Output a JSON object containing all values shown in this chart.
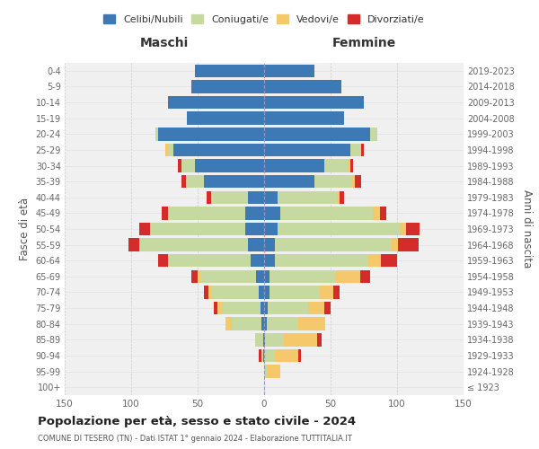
{
  "age_groups": [
    "100+",
    "95-99",
    "90-94",
    "85-89",
    "80-84",
    "75-79",
    "70-74",
    "65-69",
    "60-64",
    "55-59",
    "50-54",
    "45-49",
    "40-44",
    "35-39",
    "30-34",
    "25-29",
    "20-24",
    "15-19",
    "10-14",
    "5-9",
    "0-4"
  ],
  "birth_years": [
    "≤ 1923",
    "1924-1928",
    "1929-1933",
    "1934-1938",
    "1939-1943",
    "1944-1948",
    "1949-1953",
    "1954-1958",
    "1959-1963",
    "1964-1968",
    "1969-1973",
    "1974-1978",
    "1979-1983",
    "1984-1988",
    "1989-1993",
    "1994-1998",
    "1999-2003",
    "2004-2008",
    "2009-2013",
    "2014-2018",
    "2019-2023"
  ],
  "colors": {
    "celibi": "#3d7ab5",
    "coniugati": "#c5d9a0",
    "vedovi": "#f5c96b",
    "divorziati": "#d42b2b"
  },
  "maschi": {
    "celibi": [
      0,
      0,
      1,
      1,
      2,
      3,
      4,
      6,
      10,
      12,
      14,
      14,
      12,
      45,
      52,
      68,
      80,
      58,
      72,
      55,
      52
    ],
    "coniugati": [
      0,
      0,
      1,
      6,
      22,
      28,
      35,
      42,
      62,
      82,
      72,
      58,
      28,
      14,
      10,
      4,
      2,
      0,
      0,
      0,
      0
    ],
    "vedovi": [
      0,
      0,
      0,
      0,
      5,
      4,
      3,
      2,
      0,
      0,
      0,
      0,
      0,
      0,
      0,
      2,
      0,
      0,
      0,
      0,
      0
    ],
    "divorziati": [
      0,
      0,
      2,
      0,
      0,
      3,
      3,
      5,
      8,
      8,
      8,
      5,
      3,
      3,
      3,
      0,
      0,
      0,
      0,
      0,
      0
    ]
  },
  "femmine": {
    "nubili": [
      0,
      0,
      0,
      1,
      2,
      3,
      4,
      4,
      8,
      8,
      10,
      12,
      10,
      38,
      45,
      65,
      80,
      60,
      75,
      58,
      38
    ],
    "coniugate": [
      0,
      2,
      8,
      14,
      24,
      30,
      38,
      50,
      70,
      88,
      92,
      70,
      45,
      28,
      18,
      8,
      5,
      0,
      0,
      0,
      0
    ],
    "vedove": [
      0,
      10,
      18,
      25,
      20,
      12,
      10,
      18,
      10,
      5,
      5,
      5,
      2,
      2,
      2,
      0,
      0,
      0,
      0,
      0,
      0
    ],
    "divorziate": [
      0,
      0,
      2,
      3,
      0,
      5,
      5,
      8,
      12,
      15,
      10,
      5,
      3,
      5,
      2,
      2,
      0,
      0,
      0,
      0,
      0
    ]
  },
  "xlim": 150,
  "title_main": "Popolazione per età, sesso e stato civile - 2024",
  "title_sub": "COMUNE DI TESERO (TN) - Dati ISTAT 1° gennaio 2024 - Elaborazione TUTTITALIA.IT",
  "ylabel_left": "Fasce di età",
  "ylabel_right": "Anni di nascita",
  "xlabel_maschi": "Maschi",
  "xlabel_femmine": "Femmine",
  "legend_labels": [
    "Celibi/Nubili",
    "Coniugati/e",
    "Vedovi/e",
    "Divorziati/e"
  ],
  "bg_color": "#ffffff",
  "plot_bg": "#f0f0f0",
  "grid_color": "#cccccc"
}
